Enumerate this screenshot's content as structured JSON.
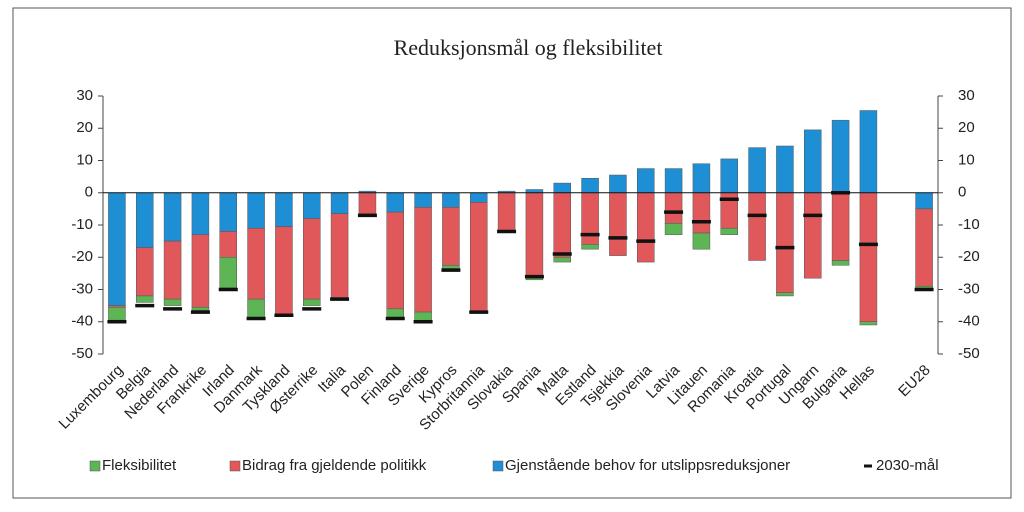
{
  "chart_data": {
    "type": "bar",
    "stacked": true,
    "title": "Reduksjonsmål og fleksibilitet",
    "categories": [
      "Luxembourg",
      "Belgia",
      "Nederland",
      "Frankrike",
      "Irland",
      "Danmark",
      "Tyskland",
      "Østerrike",
      "Italia",
      "Polen",
      "Finland",
      "Sverige",
      "Kypros",
      "Storbritannia",
      "Slovakia",
      "Spania",
      "Malta",
      "Estland",
      "Tsjekkia",
      "Slovenia",
      "Latvia",
      "Litauen",
      "Romania",
      "Kroatia",
      "Portugal",
      "Ungarn",
      "Bulgaria",
      "Hellas",
      null,
      "EU28"
    ],
    "series": [
      {
        "name": "Fleksibilitet",
        "color": "#5db556",
        "values": [
          -4,
          -2,
          -2,
          -1,
          -9.5,
          -6,
          0,
          -2,
          0,
          0,
          -3,
          -3,
          -1,
          0,
          0,
          -0.5,
          -1.5,
          -1.5,
          0,
          0,
          -3.5,
          -5,
          -2,
          0,
          -1,
          0,
          -1.5,
          -1,
          null,
          -1
        ]
      },
      {
        "name": "Bidrag fra gjeldende politikk",
        "color": "#e0585a",
        "values": [
          -0.5,
          -15,
          -18,
          -22.5,
          -8,
          -22,
          -27.5,
          -25,
          -26,
          -6.5,
          -30,
          -32.5,
          -18,
          -34,
          -12,
          -26.5,
          -20,
          -16,
          -19.5,
          -21.5,
          -9.5,
          -12.5,
          -11,
          -21,
          -31,
          -26.5,
          -21,
          -40,
          null,
          -24
        ]
      },
      {
        "name": "Gjenstående behov for utslippsreduksjoner",
        "color": "#1e8fd5",
        "values": [
          -35,
          -17,
          -15,
          -13,
          -12,
          -11,
          -10.5,
          -8,
          -6.5,
          0.5,
          -6,
          -4.5,
          -4.5,
          -3,
          0.5,
          1,
          3,
          4.5,
          5.5,
          7.5,
          7.5,
          9,
          10.5,
          14,
          14.5,
          19.5,
          22.5,
          25.5,
          null,
          -5
        ]
      },
      {
        "name": "2030-mål",
        "color": "#111111",
        "marker": "dash",
        "values": [
          -40,
          -35,
          -36,
          -37,
          -30,
          -39,
          -38,
          -36,
          -33,
          -7,
          -39,
          -40,
          -24,
          -37,
          -12,
          -26,
          -19,
          -13,
          -14,
          -15,
          -6,
          -9,
          -2,
          -7,
          -17,
          -7,
          0,
          -16,
          null,
          -30
        ]
      }
    ],
    "ylim": [
      -50,
      30
    ],
    "yticks": [
      -50,
      -40,
      -30,
      -20,
      -10,
      0,
      10,
      20,
      30
    ],
    "y2lim": [
      -50,
      30
    ],
    "y2ticks": [
      -50,
      -40,
      -30,
      -20,
      -10,
      0,
      10,
      20,
      30
    ],
    "legend": "bottom"
  }
}
